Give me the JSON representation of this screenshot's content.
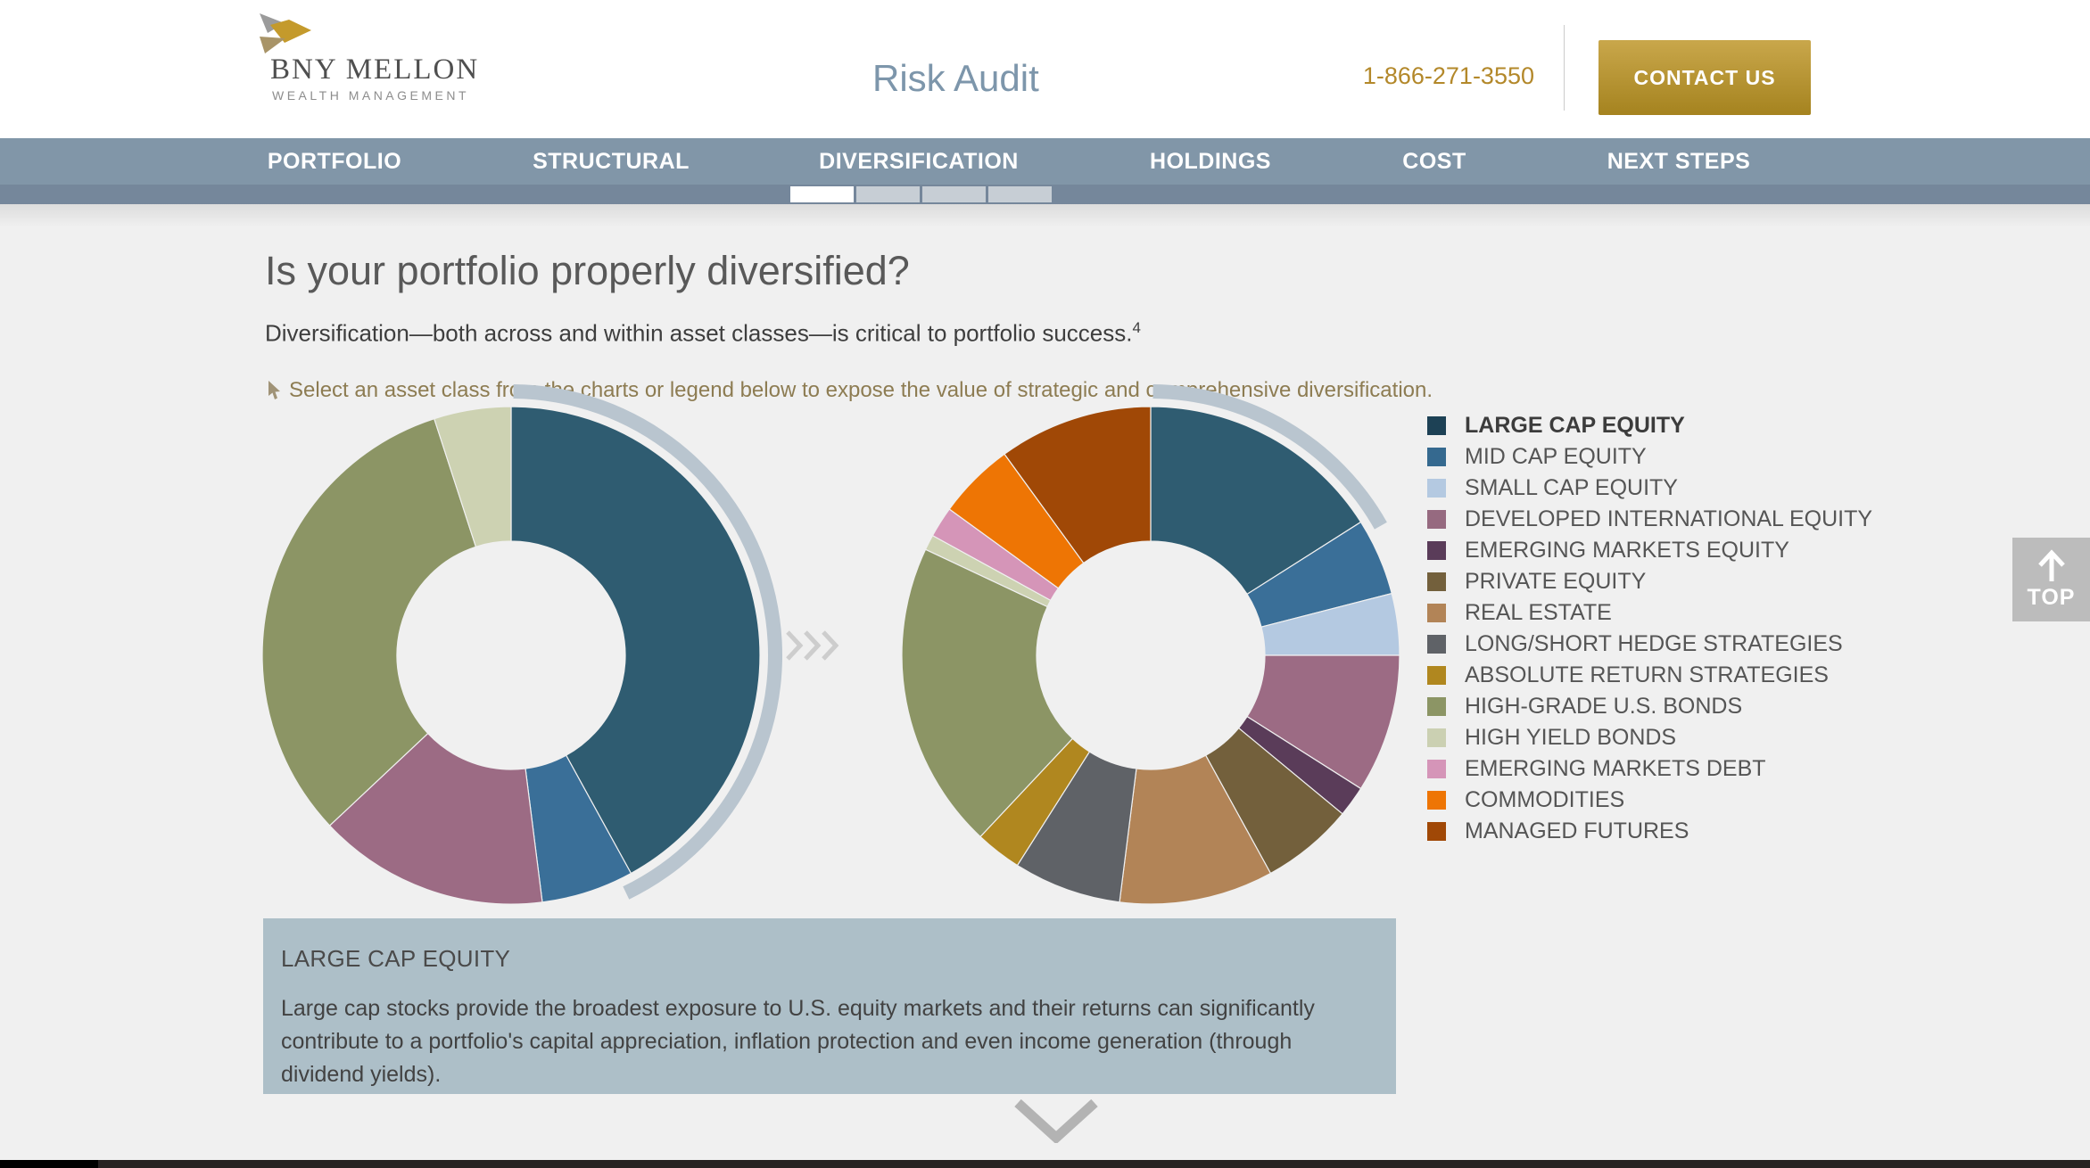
{
  "header": {
    "logo": {
      "line1": "BNY MELLON",
      "line2": "WEALTH MANAGEMENT",
      "mark_colors": {
        "gray": "#9b9b9b",
        "gold": "#c49a2c",
        "tan": "#a89468"
      }
    },
    "title": "Risk Audit",
    "phone": "1-866-271-3550",
    "contact_button": "CONTACT US"
  },
  "nav": {
    "items": [
      {
        "label": "PORTFOLIO"
      },
      {
        "label": "STRUCTURAL"
      },
      {
        "label": "DIVERSIFICATION",
        "active": true
      },
      {
        "label": "HOLDINGS"
      },
      {
        "label": "COST"
      },
      {
        "label": "NEXT STEPS"
      }
    ],
    "progress": {
      "segments": 4,
      "completed": 1,
      "done_color": "#ffffff",
      "todo_color": "#c7ced5"
    }
  },
  "main": {
    "heading": "Is your portfolio properly diversified?",
    "subheading": "Diversification—both across and within asset classes—is critical to portfolio success.",
    "footnote_marker": "4",
    "instruction": "Select an asset class from the charts or legend below to expose the value of strategic and comprehensive diversification."
  },
  "legend": {
    "items": [
      {
        "label": "LARGE CAP EQUITY",
        "color": "#1d4155",
        "selected": true
      },
      {
        "label": "MID CAP EQUITY",
        "color": "#35698f"
      },
      {
        "label": "SMALL CAP EQUITY",
        "color": "#b4c9e1"
      },
      {
        "label": "DEVELOPED INTERNATIONAL EQUITY",
        "color": "#966a80"
      },
      {
        "label": "EMERGING MARKETS EQUITY",
        "color": "#5a3c59"
      },
      {
        "label": "PRIVATE EQUITY",
        "color": "#73603c"
      },
      {
        "label": "REAL ESTATE",
        "color": "#b28457"
      },
      {
        "label": "LONG/SHORT HEDGE STRATEGIES",
        "color": "#5f6267"
      },
      {
        "label": "ABSOLUTE RETURN STRATEGIES",
        "color": "#b0871f"
      },
      {
        "label": "HIGH-GRADE U.S. BONDS",
        "color": "#8c9565"
      },
      {
        "label": "HIGH YIELD BONDS",
        "color": "#cbd0b2"
      },
      {
        "label": "EMERGING MARKETS DEBT",
        "color": "#d595b8"
      },
      {
        "label": "COMMODITIES",
        "color": "#ee7504"
      },
      {
        "label": "MANAGED FUTURES",
        "color": "#a04806"
      }
    ]
  },
  "chart_data": [
    {
      "type": "pie",
      "subtype": "donut",
      "name": "strategic-portfolio-donut",
      "selected_segment": "LARGE CAP EQUITY",
      "highlight_color": "#b9c5cf",
      "segments": [
        {
          "label": "LARGE CAP EQUITY",
          "value": 42,
          "color": "#2f5c71"
        },
        {
          "label": "MID CAP EQUITY",
          "value": 6,
          "color": "#3a6f98"
        },
        {
          "label": "DEVELOPED INTERNATIONAL EQUITY",
          "value": 15,
          "color": "#9c6b84"
        },
        {
          "label": "HIGH-GRADE U.S. BONDS",
          "value": 32,
          "color": "#8c9565"
        },
        {
          "label": "HIGH YIELD BONDS",
          "value": 5,
          "color": "#cdd2b2"
        }
      ]
    },
    {
      "type": "pie",
      "subtype": "donut",
      "name": "diversified-portfolio-donut",
      "selected_segment": "LARGE CAP EQUITY",
      "highlight_color": "#b9c5cf",
      "segments": [
        {
          "label": "LARGE CAP EQUITY",
          "value": 16,
          "color": "#2f5c71"
        },
        {
          "label": "MID CAP EQUITY",
          "value": 5,
          "color": "#3a6f98"
        },
        {
          "label": "SMALL CAP EQUITY",
          "value": 4,
          "color": "#b4c9e1"
        },
        {
          "label": "DEVELOPED INTERNATIONAL EQUITY",
          "value": 9,
          "color": "#9c6b84"
        },
        {
          "label": "EMERGING MARKETS EQUITY",
          "value": 2,
          "color": "#5a3c59"
        },
        {
          "label": "PRIVATE EQUITY",
          "value": 6,
          "color": "#73603c"
        },
        {
          "label": "REAL ESTATE",
          "value": 10,
          "color": "#b28457"
        },
        {
          "label": "LONG/SHORT HEDGE STRATEGIES",
          "value": 7,
          "color": "#5f6267"
        },
        {
          "label": "ABSOLUTE RETURN STRATEGIES",
          "value": 3,
          "color": "#b0871f"
        },
        {
          "label": "HIGH-GRADE U.S. BONDS",
          "value": 20,
          "color": "#8c9565"
        },
        {
          "label": "HIGH YIELD BONDS",
          "value": 1,
          "color": "#cdd2b2"
        },
        {
          "label": "EMERGING MARKETS DEBT",
          "value": 2,
          "color": "#d595b8"
        },
        {
          "label": "COMMODITIES",
          "value": 5,
          "color": "#ee7504"
        },
        {
          "label": "MANAGED FUTURES",
          "value": 10,
          "color": "#a04806"
        }
      ]
    }
  ],
  "info_box": {
    "title": "LARGE CAP EQUITY",
    "body": "Large cap stocks provide the broadest exposure to U.S. equity markets and their returns can significantly contribute to a portfolio's capital appreciation, inflation protection and even income generation (through dividend yields)."
  },
  "misc": {
    "top_button": "TOP"
  }
}
